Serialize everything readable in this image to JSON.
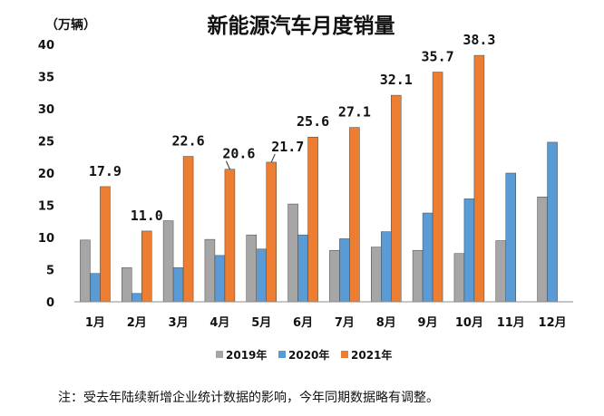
{
  "chart_data": {
    "type": "bar",
    "title": "新能源汽车月度销量",
    "ylabel": "（万辆）",
    "xlabel": "",
    "ylim": [
      0,
      40
    ],
    "yticks": [
      0,
      5,
      10,
      15,
      20,
      25,
      30,
      35,
      40
    ],
    "categories": [
      "1月",
      "2月",
      "3月",
      "4月",
      "5月",
      "6月",
      "7月",
      "8月",
      "9月",
      "10月",
      "11月",
      "12月"
    ],
    "series": [
      {
        "name": "2019年",
        "color": "#a6a6a6",
        "values": [
          9.6,
          5.3,
          12.6,
          9.7,
          10.4,
          15.2,
          8.0,
          8.5,
          8.0,
          7.5,
          9.5,
          16.3
        ]
      },
      {
        "name": "2020年",
        "color": "#5b9bd5",
        "values": [
          4.4,
          1.3,
          5.3,
          7.2,
          8.2,
          10.4,
          9.8,
          10.9,
          13.8,
          16.0,
          20.0,
          24.8
        ]
      },
      {
        "name": "2021年",
        "color": "#ed7d31",
        "values": [
          17.9,
          11.0,
          22.6,
          20.6,
          21.7,
          25.6,
          27.1,
          32.1,
          35.7,
          38.3,
          null,
          null
        ]
      }
    ],
    "data_labels": {
      "series": "2021年",
      "labels": [
        "17.9",
        "11.0",
        "22.6",
        "20.6",
        "21.7",
        "25.6",
        "27.1",
        "32.1",
        "35.7",
        "38.3"
      ]
    },
    "legend_position": "bottom",
    "grid": false
  },
  "footnote": "注：受去年陆续新增企业统计数据的影响，今年同期数据略有调整。"
}
